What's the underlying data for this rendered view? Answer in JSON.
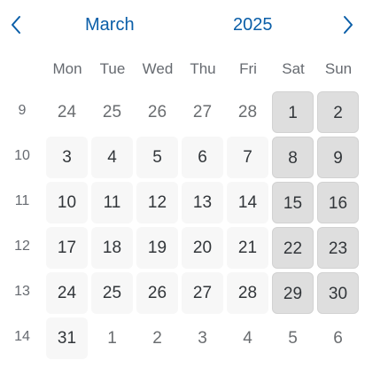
{
  "header": {
    "month": "March",
    "year": "2025",
    "prev_icon": "chevron-left-icon",
    "next_icon": "chevron-right-icon"
  },
  "weekdays": [
    "Mon",
    "Tue",
    "Wed",
    "Thu",
    "Fri",
    "Sat",
    "Sun"
  ],
  "weeks": [
    {
      "number": "9",
      "days": [
        {
          "label": "24",
          "type": "other"
        },
        {
          "label": "25",
          "type": "other"
        },
        {
          "label": "26",
          "type": "other"
        },
        {
          "label": "27",
          "type": "other"
        },
        {
          "label": "28",
          "type": "other"
        },
        {
          "label": "1",
          "type": "weekend"
        },
        {
          "label": "2",
          "type": "weekend"
        }
      ]
    },
    {
      "number": "10",
      "days": [
        {
          "label": "3",
          "type": "weekday"
        },
        {
          "label": "4",
          "type": "weekday"
        },
        {
          "label": "5",
          "type": "weekday"
        },
        {
          "label": "6",
          "type": "weekday"
        },
        {
          "label": "7",
          "type": "weekday"
        },
        {
          "label": "8",
          "type": "weekend"
        },
        {
          "label": "9",
          "type": "weekend"
        }
      ]
    },
    {
      "number": "11",
      "days": [
        {
          "label": "10",
          "type": "weekday"
        },
        {
          "label": "11",
          "type": "weekday"
        },
        {
          "label": "12",
          "type": "weekday"
        },
        {
          "label": "13",
          "type": "weekday"
        },
        {
          "label": "14",
          "type": "weekday"
        },
        {
          "label": "15",
          "type": "weekend"
        },
        {
          "label": "16",
          "type": "weekend"
        }
      ]
    },
    {
      "number": "12",
      "days": [
        {
          "label": "17",
          "type": "weekday"
        },
        {
          "label": "18",
          "type": "weekday"
        },
        {
          "label": "19",
          "type": "weekday"
        },
        {
          "label": "20",
          "type": "weekday"
        },
        {
          "label": "21",
          "type": "weekday"
        },
        {
          "label": "22",
          "type": "weekend"
        },
        {
          "label": "23",
          "type": "weekend"
        }
      ]
    },
    {
      "number": "13",
      "days": [
        {
          "label": "24",
          "type": "weekday"
        },
        {
          "label": "25",
          "type": "weekday"
        },
        {
          "label": "26",
          "type": "weekday"
        },
        {
          "label": "27",
          "type": "weekday"
        },
        {
          "label": "28",
          "type": "weekday"
        },
        {
          "label": "29",
          "type": "weekend"
        },
        {
          "label": "30",
          "type": "weekend"
        }
      ]
    },
    {
      "number": "14",
      "days": [
        {
          "label": "31",
          "type": "weekday"
        },
        {
          "label": "1",
          "type": "other"
        },
        {
          "label": "2",
          "type": "other"
        },
        {
          "label": "3",
          "type": "other"
        },
        {
          "label": "4",
          "type": "other"
        },
        {
          "label": "5",
          "type": "other"
        },
        {
          "label": "6",
          "type": "other"
        }
      ]
    }
  ],
  "colors": {
    "accent": "#0a5ea8",
    "weekday_bg": "#f7f7f7",
    "weekend_bg": "#dedede",
    "text": "#32363a",
    "muted": "#666a70"
  }
}
